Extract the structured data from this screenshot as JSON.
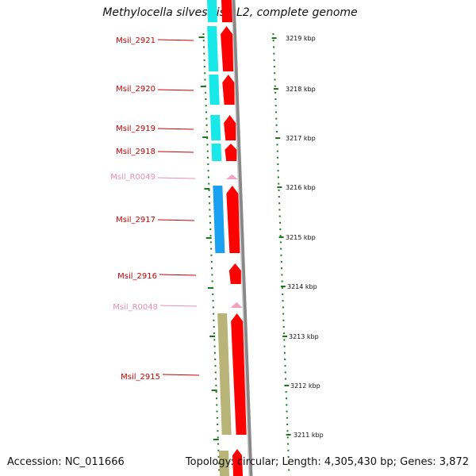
{
  "title": "Methylocella silvestris BL2, complete genome",
  "accession": "Accession: NC_011666",
  "summary": "Topology: circular; Length: 4,305,430 bp; Genes: 3,872",
  "colors": {
    "cds": "#ff0000",
    "rna": "#f4a0c0",
    "label_cds": "#cc0000",
    "label_rna": "#e890b0",
    "backbone": "#888888",
    "tick": "#1a7a1a",
    "cog_cyan": "#19e8e8",
    "cog_blue": "#1aa0f0",
    "cog_olive": "#b8b478"
  },
  "scale_labels": [
    "3219 kbp",
    "3218 kbp",
    "3217 kbp",
    "3216 kbp",
    "3215 kbp",
    "3214 kbp",
    "3213 kbp",
    "3212 kbp",
    "3211 kbp"
  ],
  "genes": [
    {
      "label": "Msil_2921",
      "kind": "cds",
      "cog": "cyan"
    },
    {
      "label": "Msil_2920",
      "kind": "cds",
      "cog": "cyan"
    },
    {
      "label": "Msil_2919",
      "kind": "cds",
      "cog": "cyan"
    },
    {
      "label": "Msil_2918",
      "kind": "cds",
      "cog": "cyan"
    },
    {
      "label": "Msil_R0049",
      "kind": "rna",
      "cog": ""
    },
    {
      "label": "Msil_2917",
      "kind": "cds",
      "cog": "blue"
    },
    {
      "label": "Msil_2916",
      "kind": "cds",
      "cog": ""
    },
    {
      "label": "Msil_R0048",
      "kind": "rna",
      "cog": ""
    },
    {
      "label": "Msil_2915",
      "kind": "cds",
      "cog": "olive"
    }
  ]
}
